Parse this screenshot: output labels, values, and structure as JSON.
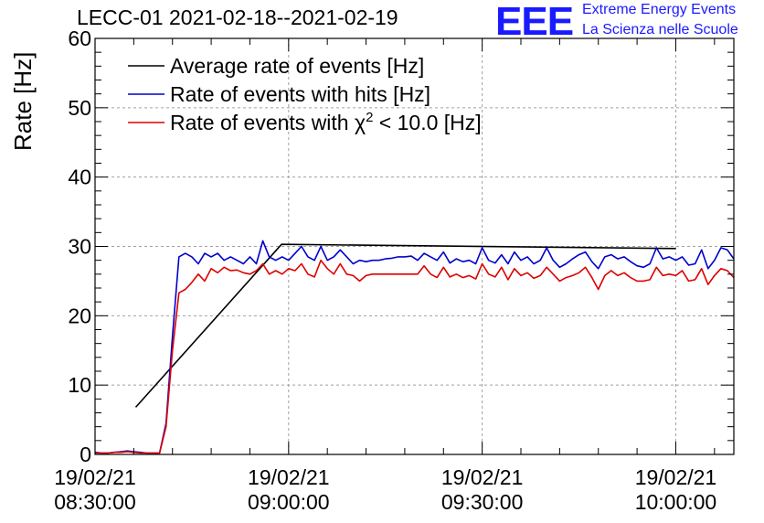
{
  "header": {
    "title": "LECC-01 2021-02-18--2021-02-19",
    "logo_text": "EEE",
    "tagline_1": "Extreme Energy Events",
    "tagline_2": "La Scienza nelle Scuole"
  },
  "colors": {
    "average": "#000000",
    "hits": "#0000cc",
    "chi2": "#dd0000",
    "logo": "#1a1aff",
    "grid": "#a0a0a0"
  },
  "chart_data": {
    "type": "line",
    "title": "LECC-01 2021-02-18--2021-02-19",
    "ylabel": "Rate [Hz]",
    "xlabel": "",
    "xlim": [
      "08:30:00",
      "10:09:00"
    ],
    "ylim": [
      0,
      60
    ],
    "yticks": [
      0,
      10,
      20,
      30,
      40,
      50,
      60
    ],
    "xticks": [
      {
        "time": "08:30:00",
        "date": "19/02/21",
        "label": "08:30:00"
      },
      {
        "time": "09:00:00",
        "date": "19/02/21",
        "label": "09:00:00"
      },
      {
        "time": "09:30:00",
        "date": "19/02/21",
        "label": "09:30:00"
      },
      {
        "time": "10:00:00",
        "date": "19/02/21",
        "label": "10:00:00"
      }
    ],
    "grid": true,
    "legend_position": "top-left",
    "legend": [
      {
        "label": "Average rate of events [Hz]",
        "series": "average"
      },
      {
        "label": "Rate of events with hits [Hz]",
        "series": "hits"
      },
      {
        "label_prefix": "Rate of events with ",
        "label_symbol": "χ",
        "label_sup": "2",
        "label_suffix": " < 10.0 [Hz]",
        "series": "chi2"
      }
    ],
    "series": [
      {
        "id": "average",
        "color": "#000000",
        "x": [
          "08:36:18",
          "08:58:54",
          "10:00:00"
        ],
        "y": [
          6.8,
          30.3,
          29.7
        ]
      },
      {
        "id": "hits",
        "color": "#0000cc",
        "x": [
          "08:30:00",
          "08:31:00",
          "08:32:00",
          "08:33:00",
          "08:34:00",
          "08:35:00",
          "08:36:00",
          "08:37:00",
          "08:38:00",
          "08:39:00",
          "08:40:00",
          "08:41:00",
          "08:42:00",
          "08:43:00",
          "08:44:00",
          "08:45:00",
          "08:46:00",
          "08:47:00",
          "08:48:00",
          "08:49:00",
          "08:50:00",
          "08:51:00",
          "08:52:00",
          "08:53:00",
          "08:54:00",
          "08:55:00",
          "08:56:00",
          "08:57:00",
          "08:58:00",
          "08:59:00",
          "09:00:00",
          "09:01:00",
          "09:02:00",
          "09:03:00",
          "09:04:00",
          "09:05:00",
          "09:06:00",
          "09:07:00",
          "09:08:00",
          "09:09:00",
          "09:10:00",
          "09:11:00",
          "09:12:00",
          "09:13:00",
          "09:14:00",
          "09:15:00",
          "09:16:00",
          "09:17:00",
          "09:18:00",
          "09:19:00",
          "09:20:00",
          "09:21:00",
          "09:22:00",
          "09:23:00",
          "09:24:00",
          "09:25:00",
          "09:26:00",
          "09:27:00",
          "09:28:00",
          "09:29:00",
          "09:30:00",
          "09:31:00",
          "09:32:00",
          "09:33:00",
          "09:34:00",
          "09:35:00",
          "09:36:00",
          "09:37:00",
          "09:38:00",
          "09:39:00",
          "09:40:00",
          "09:41:00",
          "09:42:00",
          "09:43:00",
          "09:44:00",
          "09:45:00",
          "09:46:00",
          "09:47:00",
          "09:48:00",
          "09:49:00",
          "09:50:00",
          "09:51:00",
          "09:52:00",
          "09:53:00",
          "09:54:00",
          "09:55:00",
          "09:56:00",
          "09:57:00",
          "09:58:00",
          "09:59:00",
          "10:00:00",
          "10:01:00",
          "10:02:00",
          "10:03:00",
          "10:04:00",
          "10:05:00",
          "10:06:00",
          "10:07:00",
          "10:08:00",
          "10:09:00"
        ],
        "y": [
          0.3,
          0.2,
          0.2,
          0.3,
          0.4,
          0.5,
          0.4,
          0.3,
          0.2,
          0.2,
          0.2,
          4.5,
          17.0,
          28.5,
          29.0,
          28.5,
          27.5,
          29.0,
          28.5,
          29.0,
          28.0,
          28.5,
          28.0,
          27.5,
          28.5,
          27.5,
          30.8,
          28.5,
          28.0,
          28.5,
          28.0,
          29.0,
          30.0,
          28.5,
          28.0,
          30.0,
          28.0,
          28.5,
          29.5,
          28.5,
          27.5,
          28.0,
          27.8,
          28.0,
          28.0,
          28.2,
          28.3,
          28.5,
          28.5,
          28.6,
          28.0,
          29.0,
          28.5,
          28.0,
          29.2,
          27.6,
          28.2,
          27.8,
          28.0,
          27.5,
          29.8,
          28.0,
          27.6,
          28.8,
          27.5,
          29.2,
          28.0,
          28.5,
          27.5,
          28.0,
          29.8,
          28.0,
          27.0,
          27.5,
          28.2,
          28.8,
          29.2,
          27.8,
          26.8,
          28.5,
          28.8,
          28.2,
          28.5,
          27.8,
          27.2,
          27.0,
          27.5,
          29.8,
          28.2,
          28.5,
          28.0,
          28.5,
          27.3,
          27.5,
          29.5,
          26.8,
          28.0,
          29.8,
          29.5,
          28.2
        ]
      },
      {
        "id": "chi2",
        "color": "#dd0000",
        "x": [
          "08:30:00",
          "08:31:00",
          "08:32:00",
          "08:33:00",
          "08:34:00",
          "08:35:00",
          "08:36:00",
          "08:37:00",
          "08:38:00",
          "08:39:00",
          "08:40:00",
          "08:41:00",
          "08:42:00",
          "08:43:00",
          "08:44:00",
          "08:45:00",
          "08:46:00",
          "08:47:00",
          "08:48:00",
          "08:49:00",
          "08:50:00",
          "08:51:00",
          "08:52:00",
          "08:53:00",
          "08:54:00",
          "08:55:00",
          "08:56:00",
          "08:57:00",
          "08:58:00",
          "08:59:00",
          "09:00:00",
          "09:01:00",
          "09:02:00",
          "09:03:00",
          "09:04:00",
          "09:05:00",
          "09:06:00",
          "09:07:00",
          "09:08:00",
          "09:09:00",
          "09:10:00",
          "09:11:00",
          "09:12:00",
          "09:13:00",
          "09:14:00",
          "09:15:00",
          "09:16:00",
          "09:17:00",
          "09:18:00",
          "09:19:00",
          "09:20:00",
          "09:21:00",
          "09:22:00",
          "09:23:00",
          "09:24:00",
          "09:25:00",
          "09:26:00",
          "09:27:00",
          "09:28:00",
          "09:29:00",
          "09:30:00",
          "09:31:00",
          "09:32:00",
          "09:33:00",
          "09:34:00",
          "09:35:00",
          "09:36:00",
          "09:37:00",
          "09:38:00",
          "09:39:00",
          "09:40:00",
          "09:41:00",
          "09:42:00",
          "09:43:00",
          "09:44:00",
          "09:45:00",
          "09:46:00",
          "09:47:00",
          "09:48:00",
          "09:49:00",
          "09:50:00",
          "09:51:00",
          "09:52:00",
          "09:53:00",
          "09:54:00",
          "09:55:00",
          "09:56:00",
          "09:57:00",
          "09:58:00",
          "09:59:00",
          "10:00:00",
          "10:01:00",
          "10:02:00",
          "10:03:00",
          "10:04:00",
          "10:05:00",
          "10:06:00",
          "10:07:00",
          "10:08:00",
          "10:09:00"
        ],
        "y": [
          0.2,
          0.2,
          0.2,
          0.3,
          0.3,
          0.4,
          0.3,
          0.2,
          0.2,
          0.2,
          0.2,
          4.0,
          15.0,
          23.3,
          23.8,
          24.8,
          26.0,
          25.0,
          26.8,
          26.2,
          27.0,
          26.5,
          26.6,
          26.2,
          26.0,
          26.5,
          27.5,
          26.0,
          26.5,
          26.0,
          26.8,
          26.5,
          27.5,
          26.0,
          25.6,
          28.0,
          26.8,
          26.0,
          27.5,
          26.0,
          25.8,
          25.0,
          25.8,
          26.0,
          26.0,
          26.0,
          26.0,
          26.0,
          26.0,
          26.0,
          26.0,
          27.2,
          26.0,
          25.5,
          27.0,
          25.6,
          26.0,
          25.5,
          25.8,
          25.3,
          27.5,
          26.0,
          25.6,
          27.0,
          25.2,
          26.8,
          25.8,
          26.2,
          25.4,
          25.8,
          27.0,
          26.0,
          25.0,
          25.5,
          25.8,
          26.2,
          27.0,
          25.5,
          23.8,
          25.8,
          26.5,
          25.8,
          26.2,
          25.5,
          25.0,
          25.0,
          25.2,
          27.0,
          25.8,
          26.0,
          25.8,
          26.5,
          25.0,
          25.2,
          26.8,
          24.5,
          25.8,
          26.8,
          26.5,
          25.5
        ]
      }
    ]
  }
}
